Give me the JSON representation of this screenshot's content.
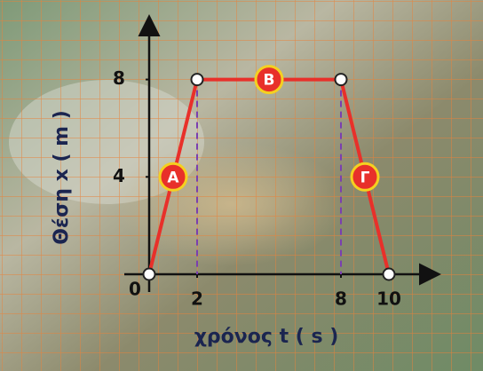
{
  "chart_data": {
    "type": "line",
    "x_label": "χρόνος t ( s )",
    "y_label": "Θέση x ( m )",
    "x": [
      0,
      2,
      8,
      10
    ],
    "values": [
      0,
      8,
      8,
      0
    ],
    "color": "#e8302a",
    "segment_labels": [
      "A",
      "B",
      "Γ"
    ],
    "xlim": [
      0,
      12
    ],
    "ylim": [
      0,
      10.5
    ],
    "xticks": [
      0,
      2,
      8,
      10
    ],
    "yticks": [
      4,
      8
    ],
    "grid": true,
    "drop_lines": true
  }
}
